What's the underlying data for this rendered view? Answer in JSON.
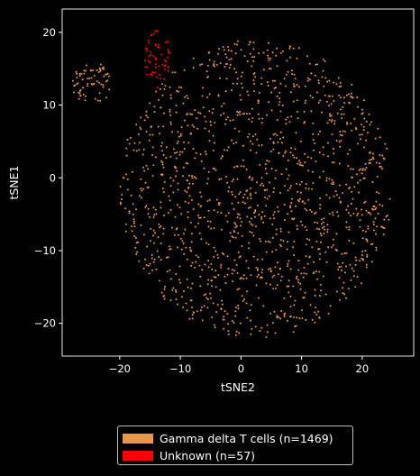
{
  "chart_data": {
    "type": "scatter",
    "title": "",
    "xlabel": "tSNE2",
    "ylabel": "tSNE1",
    "xlim": [
      -29.5,
      28.5
    ],
    "ylim": [
      -24.5,
      23.2
    ],
    "xticks": [
      -20,
      -10,
      0,
      10,
      20
    ],
    "yticks": [
      -20,
      -10,
      0,
      10,
      20
    ],
    "xtick_labels": [
      "−20",
      "−10",
      "0",
      "10",
      "20"
    ],
    "ytick_labels": [
      "−20",
      "−10",
      "0",
      "10",
      "20"
    ],
    "background": "#000000",
    "grid": false,
    "legend_position": "bottom-center-outside",
    "series": [
      {
        "name": "Gamma delta T cells (n=1469)",
        "color": "#e8964a",
        "count": 1469,
        "regions": [
          {
            "shape": "ellipse",
            "cx": 2.5,
            "cy": -1.5,
            "rx": 22.5,
            "ry": 20.5,
            "n": 1400
          },
          {
            "shape": "ellipse",
            "cx": -24.5,
            "cy": 13.0,
            "rx": 3.5,
            "ry": 2.8,
            "n": 69
          }
        ]
      },
      {
        "name": "Unknown (n=57)",
        "color": "#ff0000",
        "count": 57,
        "regions": [
          {
            "shape": "ellipse",
            "cx": -13.8,
            "cy": 16.5,
            "rx": 2.1,
            "ry": 4.2,
            "n": 57
          }
        ]
      }
    ]
  }
}
